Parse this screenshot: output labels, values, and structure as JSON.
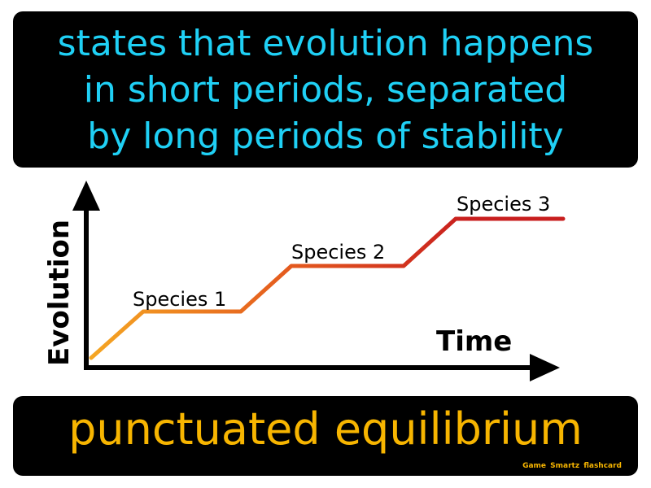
{
  "definition": {
    "lines": [
      "states that evolution happens",
      "in short periods, separated",
      "by long periods of stability"
    ]
  },
  "diagram": {
    "y_axis_label": "Evolution",
    "x_axis_label": "Time",
    "species_labels": [
      "Species 1",
      "Species 2",
      "Species 3"
    ],
    "line_colors": [
      "#f5a623",
      "#e45a1e",
      "#c81e1e"
    ]
  },
  "term": {
    "text": "punctuated equilibrium",
    "brand": "Game Smartz flashcard"
  }
}
